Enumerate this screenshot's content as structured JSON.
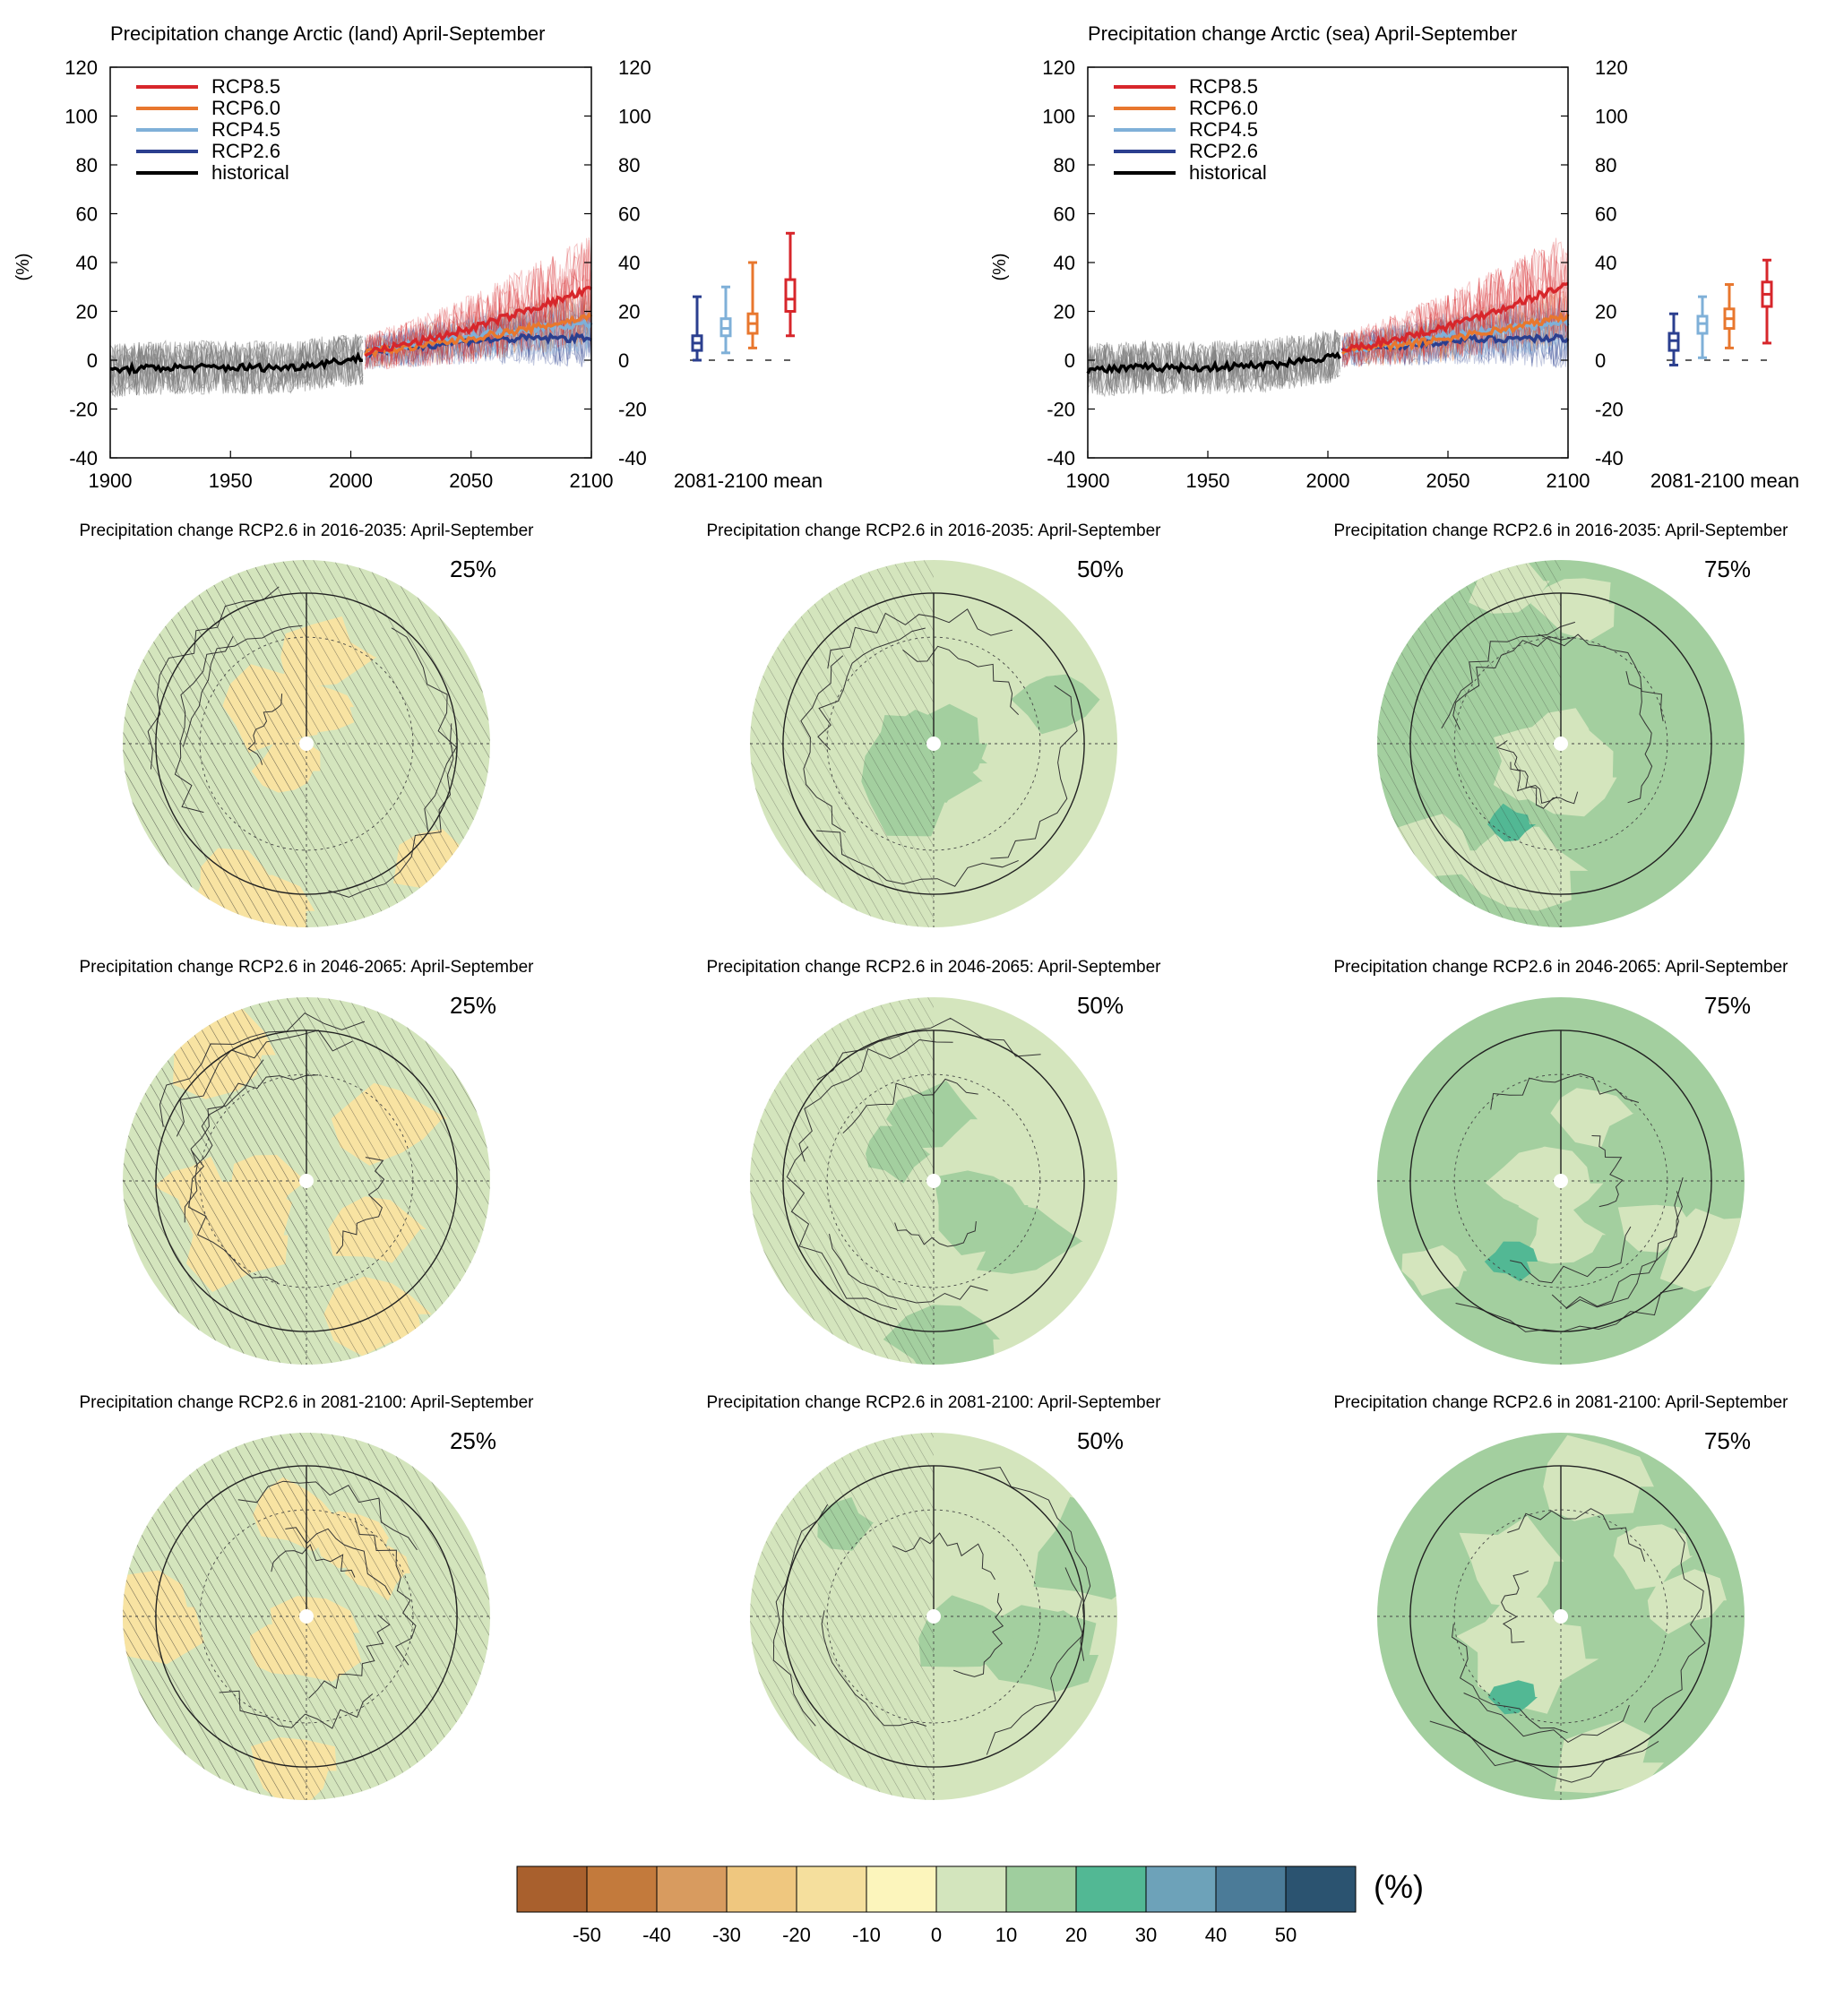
{
  "series_colors": {
    "RCP8.5": "#d7262b",
    "RCP6.0": "#e8772e",
    "RCP4.5": "#7fb0d8",
    "RCP2.6": "#2b3f8f",
    "historical": "#000000"
  },
  "chart_data": [
    {
      "type": "line",
      "title": "Precipitation change Arctic (land) April-September",
      "ylabel": "(%)",
      "xlabel": "",
      "xlim": [
        1900,
        2100
      ],
      "ylim": [
        -40,
        120
      ],
      "xticks": [
        "1900",
        "1950",
        "2000",
        "2050",
        "2100"
      ],
      "yticks": [
        "120",
        "100",
        "80",
        "60",
        "40",
        "20",
        "0",
        "-20",
        "-40"
      ],
      "legend": {
        "placement": "top-left",
        "entries": [
          "RCP8.5",
          "RCP6.0",
          "RCP4.5",
          "RCP2.6",
          "historical"
        ]
      },
      "series": [
        {
          "name": "historical",
          "x": [
            1900,
            1925,
            1950,
            1975,
            2005
          ],
          "y": [
            -4,
            -3,
            -3,
            -3,
            1
          ]
        },
        {
          "name": "RCP2.6",
          "x": [
            2006,
            2030,
            2050,
            2075,
            2100
          ],
          "y": [
            3,
            6,
            8,
            9,
            9
          ]
        },
        {
          "name": "RCP4.5",
          "x": [
            2006,
            2030,
            2050,
            2075,
            2100
          ],
          "y": [
            3,
            7,
            10,
            13,
            15
          ]
        },
        {
          "name": "RCP6.0",
          "x": [
            2006,
            2030,
            2050,
            2075,
            2100
          ],
          "y": [
            3,
            6,
            9,
            13,
            18
          ]
        },
        {
          "name": "RCP8.5",
          "x": [
            2006,
            2030,
            2050,
            2075,
            2100
          ],
          "y": [
            3,
            8,
            13,
            21,
            29
          ]
        }
      ],
      "boxplots": {
        "label": "2081-2100 mean",
        "boxes": [
          {
            "name": "RCP2.6",
            "min": 0,
            "q1": 4,
            "median": 7,
            "q3": 10,
            "max": 26
          },
          {
            "name": "RCP4.5",
            "min": 3,
            "q1": 10,
            "median": 13,
            "q3": 17,
            "max": 30
          },
          {
            "name": "RCP6.0",
            "min": 5,
            "q1": 11,
            "median": 15,
            "q3": 19,
            "max": 40
          },
          {
            "name": "RCP8.5",
            "min": 10,
            "q1": 20,
            "median": 25,
            "q3": 33,
            "max": 52
          }
        ]
      }
    },
    {
      "type": "line",
      "title": "Precipitation change Arctic (sea) April-September",
      "ylabel": "(%)",
      "xlabel": "",
      "xlim": [
        1900,
        2100
      ],
      "ylim": [
        -40,
        120
      ],
      "xticks": [
        "1900",
        "1950",
        "2000",
        "2050",
        "2100"
      ],
      "yticks": [
        "120",
        "100",
        "80",
        "60",
        "40",
        "20",
        "0",
        "-20",
        "-40"
      ],
      "legend": {
        "placement": "top-left",
        "entries": [
          "RCP8.5",
          "RCP6.0",
          "RCP4.5",
          "RCP2.6",
          "historical"
        ]
      },
      "series": [
        {
          "name": "historical",
          "x": [
            1900,
            1925,
            1950,
            1975,
            2005
          ],
          "y": [
            -4,
            -3,
            -3,
            -2,
            2
          ]
        },
        {
          "name": "RCP2.6",
          "x": [
            2006,
            2030,
            2050,
            2075,
            2100
          ],
          "y": [
            4,
            6,
            8,
            9,
            9
          ]
        },
        {
          "name": "RCP4.5",
          "x": [
            2006,
            2030,
            2050,
            2075,
            2100
          ],
          "y": [
            4,
            7,
            10,
            13,
            15
          ]
        },
        {
          "name": "RCP6.0",
          "x": [
            2006,
            2030,
            2050,
            2075,
            2100
          ],
          "y": [
            4,
            6,
            9,
            13,
            18
          ]
        },
        {
          "name": "RCP8.5",
          "x": [
            2006,
            2030,
            2050,
            2075,
            2100
          ],
          "y": [
            4,
            9,
            14,
            22,
            31
          ]
        }
      ],
      "boxplots": {
        "label": "2081-2100 mean",
        "boxes": [
          {
            "name": "RCP2.6",
            "min": -2,
            "q1": 4,
            "median": 8,
            "q3": 11,
            "max": 19
          },
          {
            "name": "RCP4.5",
            "min": 1,
            "q1": 11,
            "median": 15,
            "q3": 18,
            "max": 26
          },
          {
            "name": "RCP6.0",
            "min": 5,
            "q1": 13,
            "median": 17,
            "q3": 21,
            "max": 31
          },
          {
            "name": "RCP8.5",
            "min": 7,
            "q1": 22,
            "median": 27,
            "q3": 32,
            "max": 41
          }
        ]
      }
    }
  ],
  "maps": {
    "rows": [
      {
        "title": "Precipitation change RCP2.6 in 2016-2035: April-September"
      },
      {
        "title": "Precipitation change RCP2.6 in 2046-2065: April-September"
      },
      {
        "title": "Precipitation change RCP2.6 in 2081-2100: April-September"
      }
    ],
    "percentiles": [
      "25%",
      "50%",
      "75%"
    ],
    "fill_levels": [
      [
        "0 to 10 with areas of -10 to 0",
        "0 to 10",
        "10 to 20"
      ],
      [
        "0 to 10",
        "0 to 10 with areas of 10 to 20",
        "10 to 20"
      ],
      [
        "0 to 10 with areas of -10 to 0",
        "0 to 10",
        "10 to 20"
      ]
    ]
  },
  "colorbar": {
    "unit": "(%)",
    "tick_labels": [
      "-50",
      "-40",
      "-30",
      "-20",
      "-10",
      "0",
      "10",
      "20",
      "30",
      "40",
      "50"
    ],
    "colors": [
      "#a9602d",
      "#c37a3c",
      "#d89b5f",
      "#efc77f",
      "#f5df9d",
      "#fcf5bc",
      "#d3e5bd",
      "#9fce9e",
      "#52b894",
      "#6da2b9",
      "#4b7b98",
      "#2b5370"
    ]
  }
}
